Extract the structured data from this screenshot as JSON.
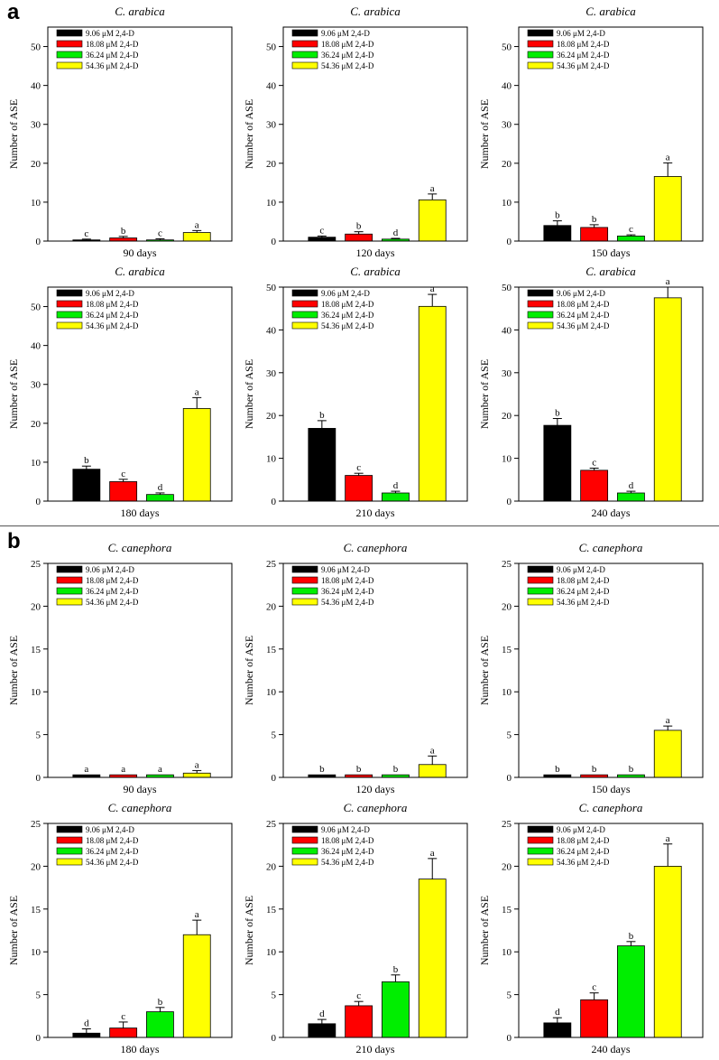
{
  "figure": {
    "panel_a_label": "a",
    "panel_b_label": "b",
    "legend": [
      "9.06 μM 2,4-D",
      "18.08 μM 2,4-D",
      "36.24 μM 2,4-D",
      "54.36 μM 2,4-D"
    ],
    "colors": [
      "#000000",
      "#ff0000",
      "#00ee00",
      "#ffff00"
    ]
  },
  "chart_data": [
    {
      "type": "bar",
      "panel": "a",
      "title": "C. arabica",
      "xlabel": "90 days",
      "ylabel": "Number of ASE",
      "ylim": [
        0,
        55
      ],
      "yticks": [
        0,
        10,
        20,
        30,
        40,
        50
      ],
      "categories": [
        "9.06 μM 2,4-D",
        "18.08 μM 2,4-D",
        "36.24 μM 2,4-D",
        "54.36 μM 2,4-D"
      ],
      "values": [
        0.3,
        0.8,
        0.3,
        2.2
      ],
      "errors": [
        0.2,
        0.4,
        0.3,
        0.5
      ],
      "letters": [
        "c",
        "b",
        "c",
        "a"
      ]
    },
    {
      "type": "bar",
      "panel": "a",
      "title": "C. arabica",
      "xlabel": "120 days",
      "ylabel": "Number of ASE",
      "ylim": [
        0,
        55
      ],
      "yticks": [
        0,
        10,
        20,
        30,
        40,
        50
      ],
      "categories": [
        "9.06 μM 2,4-D",
        "18.08 μM 2,4-D",
        "36.24 μM 2,4-D",
        "54.36 μM 2,4-D"
      ],
      "values": [
        1.0,
        1.8,
        0.5,
        10.6
      ],
      "errors": [
        0.3,
        0.6,
        0.2,
        1.5
      ],
      "letters": [
        "c",
        "b",
        "d",
        "a"
      ]
    },
    {
      "type": "bar",
      "panel": "a",
      "title": "C. arabica",
      "xlabel": "150 days",
      "ylabel": "Number of ASE",
      "ylim": [
        0,
        55
      ],
      "yticks": [
        0,
        10,
        20,
        30,
        40,
        50
      ],
      "categories": [
        "9.06 μM 2,4-D",
        "18.08 μM 2,4-D",
        "36.24 μM 2,4-D",
        "54.36 μM 2,4-D"
      ],
      "values": [
        4.0,
        3.5,
        1.3,
        16.6
      ],
      "errors": [
        1.2,
        0.7,
        0.3,
        3.5
      ],
      "letters": [
        "b",
        "b",
        "c",
        "a"
      ]
    },
    {
      "type": "bar",
      "panel": "a",
      "title": "C. arabica",
      "xlabel": "180 days",
      "ylabel": "Number of ASE",
      "ylim": [
        0,
        55
      ],
      "yticks": [
        0,
        10,
        20,
        30,
        40,
        50
      ],
      "categories": [
        "9.06 μM 2,4-D",
        "18.08 μM 2,4-D",
        "36.24 μM 2,4-D",
        "54.36 μM 2,4-D"
      ],
      "values": [
        8.2,
        5.0,
        1.7,
        23.8
      ],
      "errors": [
        0.8,
        0.6,
        0.4,
        2.8
      ],
      "letters": [
        "b",
        "c",
        "d",
        "a"
      ]
    },
    {
      "type": "bar",
      "panel": "a",
      "title": "C. arabica",
      "xlabel": "210 days",
      "ylabel": "Number of ASE",
      "ylim": [
        0,
        50
      ],
      "yticks": [
        0,
        10,
        20,
        30,
        40,
        50
      ],
      "categories": [
        "9.06 μM 2,4-D",
        "18.08 μM 2,4-D",
        "36.24 μM 2,4-D",
        "54.36 μM 2,4-D"
      ],
      "values": [
        17.0,
        6.0,
        1.9,
        45.5
      ],
      "errors": [
        1.8,
        0.5,
        0.4,
        2.8
      ],
      "letters": [
        "b",
        "c",
        "d",
        "a"
      ]
    },
    {
      "type": "bar",
      "panel": "a",
      "title": "C. arabica",
      "xlabel": "240 days",
      "ylabel": "Number of ASE",
      "ylim": [
        0,
        50
      ],
      "yticks": [
        0,
        10,
        20,
        30,
        40,
        50
      ],
      "categories": [
        "9.06 μM 2,4-D",
        "18.08 μM 2,4-D",
        "36.24 μM 2,4-D",
        "54.36 μM 2,4-D"
      ],
      "values": [
        17.7,
        7.2,
        1.9,
        47.5
      ],
      "errors": [
        1.6,
        0.5,
        0.4,
        2.5
      ],
      "letters": [
        "b",
        "c",
        "d",
        "a"
      ]
    },
    {
      "type": "bar",
      "panel": "b",
      "title": "C. canephora",
      "xlabel": "90 days",
      "ylabel": "Number of ASE",
      "ylim": [
        0,
        25
      ],
      "yticks": [
        0,
        5,
        10,
        15,
        20,
        25
      ],
      "categories": [
        "9.06 μM 2,4-D",
        "18.08 μM 2,4-D",
        "36.24 μM 2,4-D",
        "54.36 μM 2,4-D"
      ],
      "values": [
        0.3,
        0.3,
        0.3,
        0.5
      ],
      "errors": [
        0.0,
        0.0,
        0.0,
        0.3
      ],
      "letters": [
        "a",
        "a",
        "a",
        "a"
      ]
    },
    {
      "type": "bar",
      "panel": "b",
      "title": "C. canephora",
      "xlabel": "120 days",
      "ylabel": "Number of ASE",
      "ylim": [
        0,
        25
      ],
      "yticks": [
        0,
        5,
        10,
        15,
        20,
        25
      ],
      "categories": [
        "9.06 μM 2,4-D",
        "18.08 μM 2,4-D",
        "36.24 μM 2,4-D",
        "54.36 μM 2,4-D"
      ],
      "values": [
        0.3,
        0.3,
        0.3,
        1.5
      ],
      "errors": [
        0.0,
        0.0,
        0.0,
        1.0
      ],
      "letters": [
        "b",
        "b",
        "b",
        "a"
      ]
    },
    {
      "type": "bar",
      "panel": "b",
      "title": "C. canephora",
      "xlabel": "150 days",
      "ylabel": "Number of ASE",
      "ylim": [
        0,
        25
      ],
      "yticks": [
        0,
        5,
        10,
        15,
        20,
        25
      ],
      "categories": [
        "9.06 μM 2,4-D",
        "18.08 μM 2,4-D",
        "36.24 μM 2,4-D",
        "54.36 μM 2,4-D"
      ],
      "values": [
        0.3,
        0.3,
        0.3,
        5.5
      ],
      "errors": [
        0.0,
        0.0,
        0.0,
        0.5
      ],
      "letters": [
        "b",
        "b",
        "b",
        "a"
      ]
    },
    {
      "type": "bar",
      "panel": "b",
      "title": "C. canephora",
      "xlabel": "180 days",
      "ylabel": "Number of ASE",
      "ylim": [
        0,
        25
      ],
      "yticks": [
        0,
        5,
        10,
        15,
        20,
        25
      ],
      "categories": [
        "9.06 μM 2,4-D",
        "18.08 μM 2,4-D",
        "36.24 μM 2,4-D",
        "54.36 μM 2,4-D"
      ],
      "values": [
        0.5,
        1.1,
        3.0,
        12.0
      ],
      "errors": [
        0.5,
        0.7,
        0.5,
        1.7
      ],
      "letters": [
        "d",
        "c",
        "b",
        "a"
      ]
    },
    {
      "type": "bar",
      "panel": "b",
      "title": "C. canephora",
      "xlabel": "210 days",
      "ylabel": "Number of ASE",
      "ylim": [
        0,
        25
      ],
      "yticks": [
        0,
        5,
        10,
        15,
        20,
        25
      ],
      "categories": [
        "9.06 μM 2,4-D",
        "18.08 μM 2,4-D",
        "36.24 μM 2,4-D",
        "54.36 μM 2,4-D"
      ],
      "values": [
        1.6,
        3.7,
        6.5,
        18.5
      ],
      "errors": [
        0.5,
        0.5,
        0.8,
        2.4
      ],
      "letters": [
        "d",
        "c",
        "b",
        "a"
      ]
    },
    {
      "type": "bar",
      "panel": "b",
      "title": "C. canephora",
      "xlabel": "240 days",
      "ylabel": "Number of ASE",
      "ylim": [
        0,
        25
      ],
      "yticks": [
        0,
        5,
        10,
        15,
        20,
        25
      ],
      "categories": [
        "9.06 μM 2,4-D",
        "18.08 μM 2,4-D",
        "36.24 μM 2,4-D",
        "54.36 μM 2,4-D"
      ],
      "values": [
        1.7,
        4.4,
        10.7,
        20.0
      ],
      "errors": [
        0.6,
        0.8,
        0.5,
        2.6
      ],
      "letters": [
        "d",
        "c",
        "b",
        "a"
      ]
    }
  ]
}
